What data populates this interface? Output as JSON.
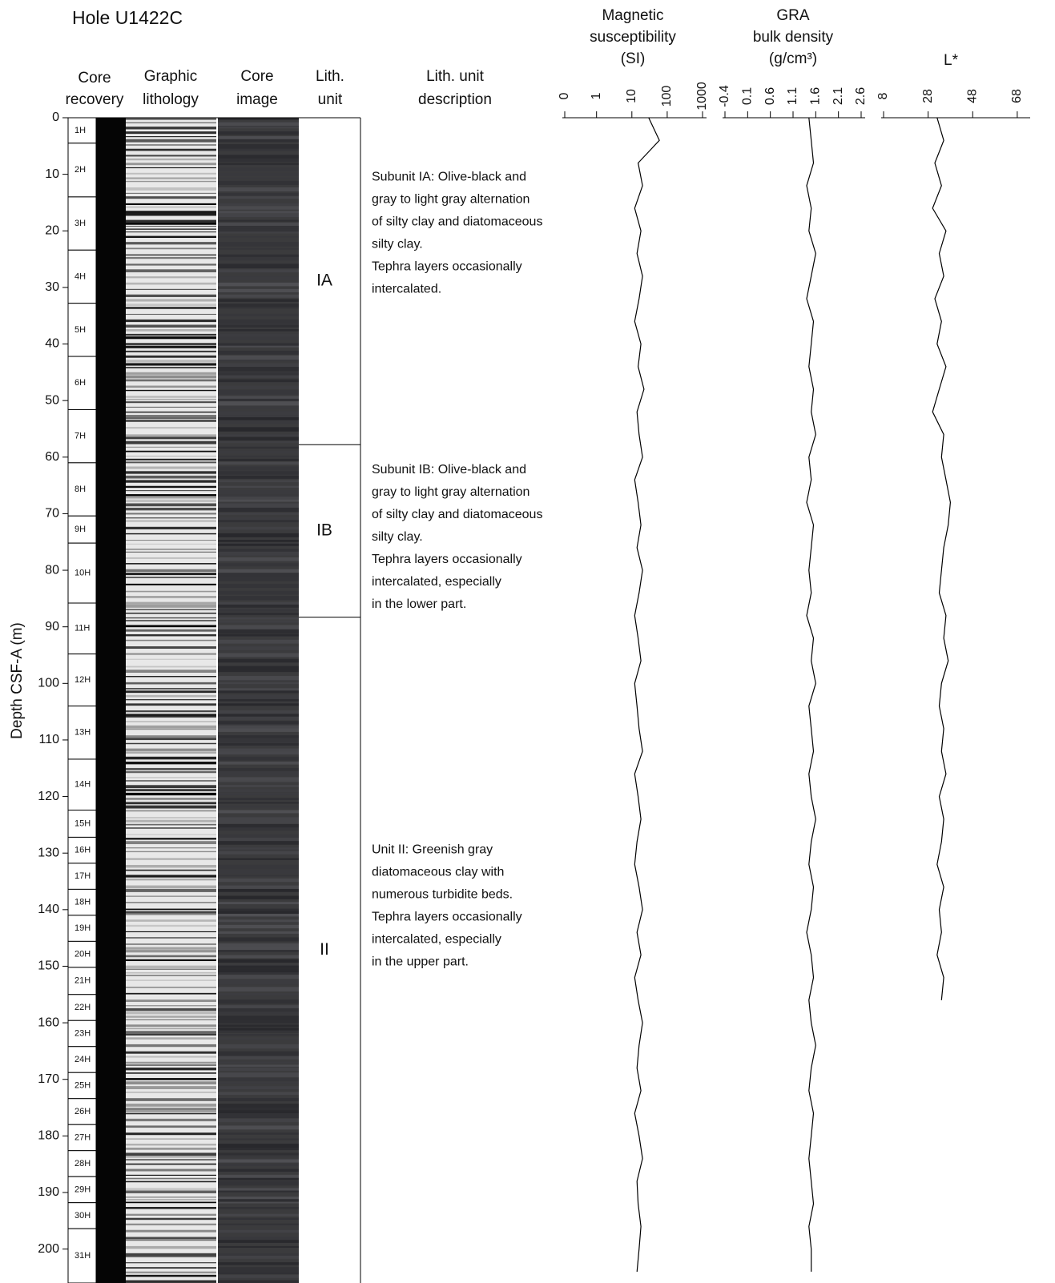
{
  "chart_data": {
    "type": "core-log",
    "title": "Hole U1422C",
    "depth_axis": {
      "label": "Depth CSF-A (m)",
      "lim": [
        0,
        206
      ],
      "ticks": [
        0,
        10,
        20,
        30,
        40,
        50,
        60,
        70,
        80,
        90,
        100,
        110,
        120,
        130,
        140,
        150,
        160,
        170,
        180,
        190,
        200
      ]
    },
    "column_headers": {
      "core_recovery": [
        "Core",
        "recovery"
      ],
      "graphic_lithology": [
        "Graphic",
        "lithology"
      ],
      "core_image": [
        "Core",
        "image"
      ],
      "lith_unit": [
        "Lith.",
        "unit"
      ],
      "lith_description": [
        "Lith. unit",
        "description"
      ]
    },
    "cores": {
      "labels": [
        "1H",
        "2H",
        "3H",
        "4H",
        "5H",
        "6H",
        "7H",
        "8H",
        "9H",
        "10H",
        "11H",
        "12H",
        "13H",
        "14H",
        "15H",
        "16H",
        "17H",
        "18H",
        "19H",
        "20H",
        "21H",
        "22H",
        "23H",
        "24H",
        "25H",
        "26H",
        "27H",
        "28H",
        "29H",
        "30H",
        "31H"
      ],
      "tops": [
        0,
        4.5,
        14,
        23.4,
        32.8,
        42.2,
        51.6,
        61,
        70.4,
        75.2,
        85.8,
        94.8,
        104,
        113.4,
        122.4,
        127.2,
        131.8,
        136.4,
        141,
        145.6,
        150.2,
        155,
        159.6,
        164.2,
        168.8,
        173.4,
        178,
        182.6,
        187.2,
        191.8,
        196.4
      ]
    },
    "units": [
      {
        "label": "IA",
        "top": 0,
        "bottom": 57.8,
        "description": [
          "Subunit IA: Olive-black and",
          "gray to light gray alternation",
          "of silty clay and diatomaceous",
          "silty clay.",
          "Tephra layers occasionally",
          "intercalated."
        ]
      },
      {
        "label": "IB",
        "top": 57.8,
        "bottom": 88.3,
        "description": [
          "Subunit IB: Olive-black and",
          "gray to light gray alternation",
          "of silty clay and diatomaceous",
          "silty clay.",
          "Tephra layers occasionally",
          "intercalated, especially",
          "in the lower part."
        ]
      },
      {
        "label": "II",
        "top": 88.3,
        "description": [
          "Unit II: Greenish gray",
          "diatomaceous clay with",
          "numerous turbidite beds.",
          "Tephra layers occasionally",
          "intercalated, especially",
          "in the upper part."
        ]
      }
    ],
    "logs": [
      {
        "title": [
          "Magnetic",
          "susceptibility",
          "(SI)"
        ],
        "scale": "symlog",
        "linthresh": 1,
        "linscale": 0.9,
        "xlim": [
          0,
          1000
        ],
        "xticks": [
          0,
          1,
          10,
          100,
          1000
        ],
        "color": "#000000",
        "depth": [
          0,
          4,
          8,
          12,
          16,
          20,
          24,
          28,
          32,
          36,
          40,
          44,
          48,
          52,
          56,
          60,
          64,
          68,
          72,
          76,
          80,
          84,
          88,
          92,
          96,
          100,
          104,
          108,
          112,
          116,
          120,
          124,
          128,
          132,
          136,
          140,
          144,
          148,
          152,
          156,
          160,
          164,
          168,
          172,
          176,
          180,
          184,
          188,
          192,
          196,
          200,
          204
        ],
        "values": [
          30,
          60,
          15,
          20,
          12,
          18,
          14,
          20,
          16,
          12,
          18,
          15,
          22,
          14,
          16,
          20,
          12,
          15,
          18,
          14,
          20,
          16,
          12,
          15,
          18,
          12,
          14,
          16,
          20,
          12,
          15,
          18,
          14,
          12,
          16,
          20,
          14,
          18,
          12,
          15,
          20,
          16,
          14,
          18,
          12,
          16,
          20,
          14,
          15,
          18,
          16,
          14
        ]
      },
      {
        "title": [
          "GRA",
          "bulk density",
          "(g/cm³)"
        ],
        "scale": "linear",
        "xlim": [
          -0.4,
          2.6
        ],
        "xticks": [
          -0.4,
          0.1,
          0.6,
          1.1,
          1.6,
          2.1,
          2.6
        ],
        "color": "#000000",
        "depth": [
          0,
          4,
          8,
          12,
          16,
          20,
          24,
          28,
          32,
          36,
          40,
          44,
          48,
          52,
          56,
          60,
          64,
          68,
          72,
          76,
          80,
          84,
          88,
          92,
          96,
          100,
          104,
          108,
          112,
          116,
          120,
          124,
          128,
          132,
          136,
          140,
          144,
          148,
          152,
          156,
          160,
          164,
          168,
          172,
          176,
          180,
          184,
          188,
          192,
          196,
          200,
          204
        ],
        "values": [
          1.45,
          1.5,
          1.55,
          1.4,
          1.5,
          1.45,
          1.6,
          1.5,
          1.4,
          1.55,
          1.5,
          1.45,
          1.55,
          1.5,
          1.6,
          1.45,
          1.5,
          1.4,
          1.55,
          1.5,
          1.45,
          1.5,
          1.4,
          1.55,
          1.5,
          1.6,
          1.45,
          1.5,
          1.55,
          1.45,
          1.5,
          1.6,
          1.5,
          1.45,
          1.55,
          1.5,
          1.4,
          1.5,
          1.55,
          1.45,
          1.5,
          1.6,
          1.5,
          1.45,
          1.55,
          1.5,
          1.45,
          1.5,
          1.55,
          1.45,
          1.5,
          1.5
        ]
      },
      {
        "title": [
          "L*"
        ],
        "scale": "linear",
        "xlim": [
          8,
          72
        ],
        "xticks": [
          8,
          28,
          48,
          68
        ],
        "color": "#000000",
        "depth": [
          0,
          4,
          8,
          12,
          16,
          20,
          24,
          28,
          32,
          36,
          40,
          44,
          48,
          52,
          56,
          60,
          64,
          68,
          72,
          76,
          80,
          84,
          88,
          92,
          96,
          100,
          104,
          108,
          112,
          116,
          120,
          124,
          128,
          132,
          136,
          140,
          144,
          148,
          152,
          156
        ],
        "values": [
          32,
          35,
          31,
          34,
          30,
          36,
          33,
          35,
          31,
          34,
          32,
          36,
          33,
          30,
          35,
          34,
          36,
          38,
          37,
          35,
          34,
          33,
          36,
          35,
          37,
          34,
          33,
          35,
          34,
          36,
          33,
          35,
          34,
          32,
          35,
          33,
          34,
          32,
          35,
          34
        ]
      }
    ]
  }
}
